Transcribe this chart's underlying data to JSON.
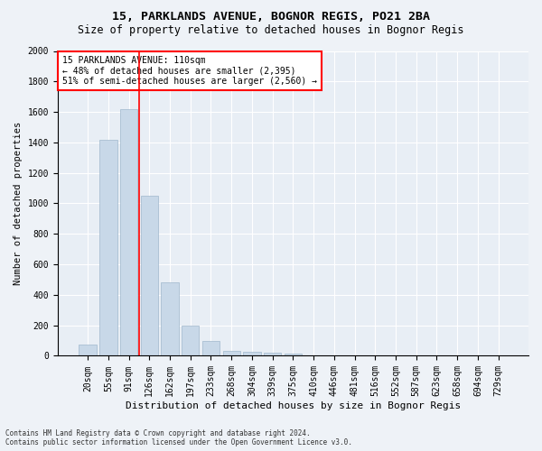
{
  "title1": "15, PARKLANDS AVENUE, BOGNOR REGIS, PO21 2BA",
  "title2": "Size of property relative to detached houses in Bognor Regis",
  "xlabel": "Distribution of detached houses by size in Bognor Regis",
  "ylabel": "Number of detached properties",
  "bar_labels": [
    "20sqm",
    "55sqm",
    "91sqm",
    "126sqm",
    "162sqm",
    "197sqm",
    "233sqm",
    "268sqm",
    "304sqm",
    "339sqm",
    "375sqm",
    "410sqm",
    "446sqm",
    "481sqm",
    "516sqm",
    "552sqm",
    "587sqm",
    "623sqm",
    "658sqm",
    "694sqm",
    "729sqm"
  ],
  "bar_values": [
    75,
    1420,
    1620,
    1050,
    480,
    200,
    100,
    35,
    25,
    20,
    15,
    0,
    0,
    0,
    0,
    0,
    0,
    0,
    0,
    0,
    0
  ],
  "bar_color": "#c8d8e8",
  "bar_edgecolor": "#a0b8cc",
  "vline_color": "red",
  "annotation_text": "15 PARKLANDS AVENUE: 110sqm\n← 48% of detached houses are smaller (2,395)\n51% of semi-detached houses are larger (2,560) →",
  "annotation_box_color": "white",
  "annotation_box_edgecolor": "red",
  "ylim": [
    0,
    2000
  ],
  "yticks": [
    0,
    200,
    400,
    600,
    800,
    1000,
    1200,
    1400,
    1600,
    1800,
    2000
  ],
  "footer1": "Contains HM Land Registry data © Crown copyright and database right 2024.",
  "footer2": "Contains public sector information licensed under the Open Government Licence v3.0.",
  "bg_color": "#eef2f7",
  "plot_bg_color": "#e8eef5",
  "grid_color": "white",
  "title1_fontsize": 9.5,
  "title2_fontsize": 8.5,
  "xlabel_fontsize": 8,
  "ylabel_fontsize": 7.5,
  "tick_fontsize": 7,
  "annot_fontsize": 7,
  "footer_fontsize": 5.5
}
